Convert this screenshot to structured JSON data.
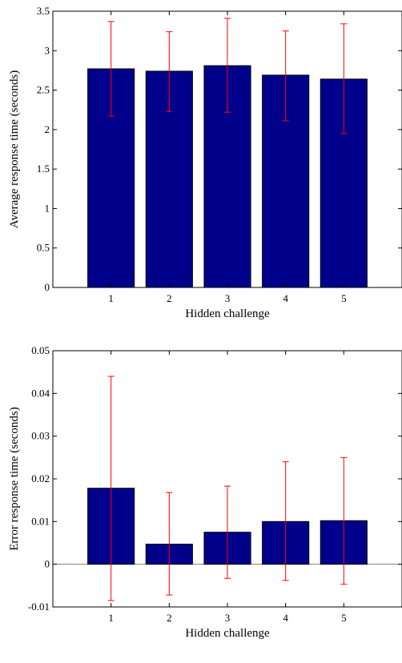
{
  "colors": {
    "bar": "#00008B",
    "error_bar": "#FF0000",
    "axis": "#000000",
    "zero_line": "#808080"
  },
  "chart_data": [
    {
      "type": "bar",
      "categories": [
        "1",
        "2",
        "3",
        "4",
        "5"
      ],
      "values": [
        2.77,
        2.74,
        2.81,
        2.69,
        2.64
      ],
      "error_low": [
        2.17,
        2.23,
        2.22,
        2.11,
        1.95
      ],
      "error_high": [
        3.37,
        3.24,
        3.41,
        3.25,
        3.34
      ],
      "title": "",
      "xlabel": "Hidden challenge",
      "ylabel": "Average response time (seconds)",
      "ylim": [
        0,
        3.5
      ],
      "yticks": [
        "0",
        "0.5",
        "1",
        "1.5",
        "2",
        "2.5",
        "3",
        "3.5"
      ],
      "xlim": [
        0,
        6
      ],
      "grid": false,
      "legend": "none"
    },
    {
      "type": "bar",
      "categories": [
        "1",
        "2",
        "3",
        "4",
        "5"
      ],
      "values": [
        0.0178,
        0.0047,
        0.0075,
        0.01,
        0.0102
      ],
      "error_low": [
        -0.0085,
        -0.0072,
        -0.0033,
        -0.0038,
        -0.0047
      ],
      "error_high": [
        0.044,
        0.0168,
        0.0183,
        0.024,
        0.025
      ],
      "title": "",
      "xlabel": "Hidden challenge",
      "ylabel": "Error response time (seconds)",
      "ylim": [
        -0.01,
        0.05
      ],
      "yticks": [
        "-0.01",
        "0",
        "0.01",
        "0.02",
        "0.03",
        "0.04",
        "0.05"
      ],
      "xlim": [
        0,
        6
      ],
      "grid": false,
      "legend": "none"
    }
  ]
}
